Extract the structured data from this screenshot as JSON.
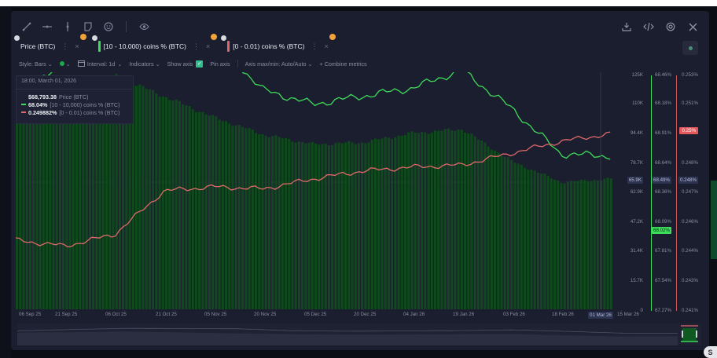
{
  "toolbar": {
    "icons": [
      "trend-line-icon",
      "horizontal-line-icon",
      "vertical-line-icon",
      "note-icon",
      "emoji-icon",
      "eye-icon"
    ],
    "right_icons": [
      "download-icon",
      "embed-code-icon",
      "settings-icon",
      "close-icon"
    ]
  },
  "tabs": [
    {
      "label": "Price (BTC)",
      "color": "#1ea84a",
      "dots": "⋮",
      "close": "×"
    },
    {
      "label": "[10 - 10,000) coins % (BTC)",
      "color": "#3ddc5a",
      "dots": "⋮",
      "close": "×"
    },
    {
      "label": "[0 - 0.01) coins % (BTC)",
      "color": "#e0686a",
      "dots": "⋮",
      "close": "×"
    }
  ],
  "options": {
    "style": "Style: Bars",
    "interval": "Interval: 1d",
    "indicators": "Indicators",
    "show_axis": "Show axis",
    "pin_axis": "Pin axis",
    "axis_maxmin": "Axis max/min: Auto/Auto",
    "combine": "+ Combine metrics",
    "chevron": "⌄"
  },
  "tooltip": {
    "date": "18:00, March 01, 2026",
    "rows": [
      {
        "value": "$68,793.38",
        "label": "Price (BTC)"
      },
      {
        "value": "68.04%",
        "label": "[10 - 10,000) coins % (BTC)"
      },
      {
        "value": "0.249882%",
        "label": "[0 - 0.01) coins % (BTC)"
      }
    ]
  },
  "axes": {
    "price": [
      "125K",
      "110K",
      "94.4K",
      "78.7K",
      "62.9K",
      "47.2K",
      "31.4K",
      "15.7K",
      "0"
    ],
    "price_cursor": "65.9K",
    "mid": [
      "68.46%",
      "68.18%",
      "68.91%",
      "68.64%",
      "68.36%",
      "68.09%",
      "67.81%",
      "67.54%",
      "67.27%"
    ],
    "mid_cursor": "68.49%",
    "mid_current": "68.02%",
    "small": [
      "0.253%",
      "0.251%",
      "",
      "0.248%",
      "0.247%",
      "0.246%",
      "0.244%",
      "0.243%",
      "0.241%"
    ],
    "small_cursor": "0.248%",
    "small_current": "0.25%"
  },
  "x_labels": [
    "06 Sep 25",
    "21 Sep 25",
    "06 Oct 25",
    "21 Oct 25",
    "05 Nov 25",
    "20 Nov 25",
    "05 Dec 25",
    "20 Dec 25",
    "04 Jan 26",
    "19 Jan 26",
    "03 Feb 26",
    "18 Feb 26",
    "01 Mar 26",
    "15 Mar 26"
  ],
  "chart_data": {
    "type": "bar",
    "title": "",
    "xlabel": "",
    "ylabel": "",
    "categories": [
      "06 Sep 25",
      "21 Sep 25",
      "06 Oct 25",
      "21 Oct 25",
      "05 Nov 25",
      "20 Nov 25",
      "05 Dec 25",
      "20 Dec 25",
      "04 Jan 26",
      "19 Jan 26",
      "03 Feb 26",
      "18 Feb 26",
      "01 Mar 26"
    ],
    "series": [
      {
        "name": "Price (BTC)",
        "type": "bar",
        "color": "#0f4a1c",
        "axis": "left",
        "ylim": [
          0,
          125000
        ],
        "values": [
          111000,
          115000,
          123000,
          112000,
          101000,
          92000,
          87000,
          88000,
          93000,
          95000,
          78000,
          67000,
          68793
        ]
      },
      {
        "name": "[10 - 10,000) coins % (BTC)",
        "type": "line",
        "color": "#3ddc5a",
        "axis": "mid",
        "ylim": [
          67.27,
          68.46
        ],
        "values": [
          68.35,
          68.52,
          68.68,
          68.65,
          68.62,
          68.37,
          68.3,
          68.34,
          68.38,
          68.47,
          68.28,
          68.05,
          68.04
        ]
      },
      {
        "name": "[0 - 0.01) coins % (BTC)",
        "type": "line",
        "color": "#e0686a",
        "axis": "right",
        "ylim": [
          0.241,
          0.253
        ],
        "values": [
          0.2445,
          0.2442,
          0.2448,
          0.247,
          0.2472,
          0.2471,
          0.2476,
          0.248,
          0.2482,
          0.2483,
          0.2489,
          0.2495,
          0.249882
        ]
      }
    ],
    "grid": false,
    "legend_position": "top-left tooltip"
  },
  "s_badge": "S"
}
